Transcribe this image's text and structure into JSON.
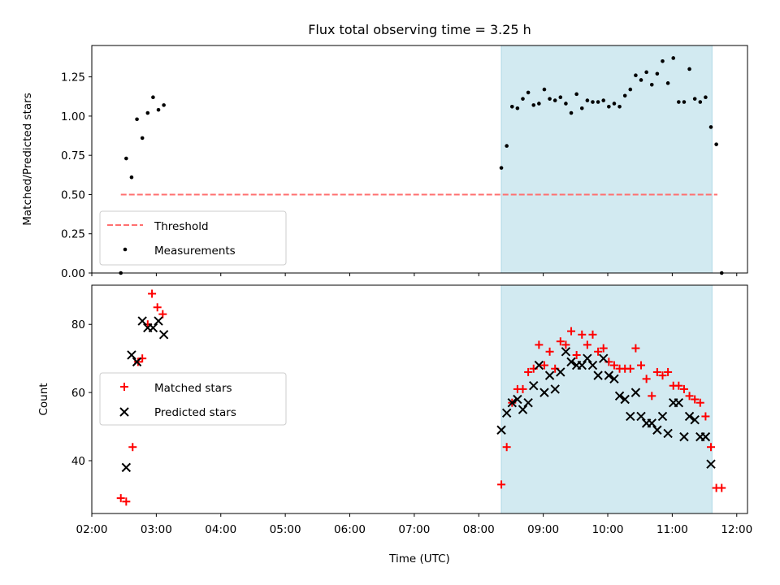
{
  "chart_data": [
    {
      "type": "scatter",
      "title": "Flux total observing time = 3.25 h",
      "ylabel": "Matched/Predicted stars",
      "ylim": [
        0,
        1.45
      ],
      "xlim": [
        "02:00",
        "12:10"
      ],
      "yticks": [
        "0.00",
        "0.25",
        "0.50",
        "0.75",
        "1.00",
        "1.25"
      ],
      "grid": false,
      "legend_placement": "lower-left",
      "highlight_span": {
        "start": "08:21",
        "end": "11:37",
        "color": "#add8e6"
      },
      "threshold": {
        "name": "Threshold",
        "y": 0.5,
        "x_start": "02:27",
        "x_end": "11:42",
        "color": "#ff7070",
        "style": "dashed"
      },
      "series": [
        {
          "name": "Measurements",
          "color": "#000000",
          "marker": "dot",
          "points": [
            [
              "02:27",
              0.0
            ],
            [
              "02:32",
              0.73
            ],
            [
              "02:37",
              0.61
            ],
            [
              "02:42",
              0.98
            ],
            [
              "02:47",
              0.86
            ],
            [
              "02:52",
              1.02
            ],
            [
              "02:57",
              1.12
            ],
            [
              "03:02",
              1.04
            ],
            [
              "03:07",
              1.07
            ],
            [
              "08:21",
              0.67
            ],
            [
              "08:26",
              0.81
            ],
            [
              "08:31",
              1.06
            ],
            [
              "08:36",
              1.05
            ],
            [
              "08:41",
              1.11
            ],
            [
              "08:46",
              1.15
            ],
            [
              "08:51",
              1.07
            ],
            [
              "08:56",
              1.08
            ],
            [
              "09:01",
              1.17
            ],
            [
              "09:06",
              1.11
            ],
            [
              "09:11",
              1.1
            ],
            [
              "09:16",
              1.12
            ],
            [
              "09:21",
              1.08
            ],
            [
              "09:26",
              1.02
            ],
            [
              "09:31",
              1.14
            ],
            [
              "09:36",
              1.05
            ],
            [
              "09:41",
              1.1
            ],
            [
              "09:46",
              1.09
            ],
            [
              "09:51",
              1.09
            ],
            [
              "09:56",
              1.1
            ],
            [
              "10:01",
              1.06
            ],
            [
              "10:06",
              1.08
            ],
            [
              "10:11",
              1.06
            ],
            [
              "10:16",
              1.13
            ],
            [
              "10:21",
              1.17
            ],
            [
              "10:26",
              1.26
            ],
            [
              "10:31",
              1.23
            ],
            [
              "10:36",
              1.28
            ],
            [
              "10:41",
              1.2
            ],
            [
              "10:46",
              1.27
            ],
            [
              "10:51",
              1.35
            ],
            [
              "10:56",
              1.21
            ],
            [
              "11:01",
              1.37
            ],
            [
              "11:06",
              1.09
            ],
            [
              "11:11",
              1.09
            ],
            [
              "11:16",
              1.3
            ],
            [
              "11:21",
              1.11
            ],
            [
              "11:26",
              1.09
            ],
            [
              "11:31",
              1.12
            ],
            [
              "11:36",
              0.93
            ],
            [
              "11:41",
              0.82
            ],
            [
              "11:46",
              0.0
            ]
          ]
        }
      ]
    },
    {
      "type": "scatter",
      "ylabel": "Count",
      "xlabel": "Time (UTC)",
      "ylim": [
        24.5,
        91.5
      ],
      "xlim": [
        "02:00",
        "12:10"
      ],
      "yticks": [
        "40",
        "60",
        "80"
      ],
      "xticks": [
        "02:00",
        "03:00",
        "04:00",
        "05:00",
        "06:00",
        "07:00",
        "08:00",
        "09:00",
        "10:00",
        "11:00",
        "12:00"
      ],
      "grid": false,
      "legend_placement": "center-left",
      "highlight_span": {
        "start": "08:21",
        "end": "11:37",
        "color": "#add8e6"
      },
      "series": [
        {
          "name": "Matched stars",
          "color": "#ff0000",
          "marker": "plus",
          "points": [
            [
              "02:27",
              29
            ],
            [
              "02:32",
              28
            ],
            [
              "02:38",
              44
            ],
            [
              "02:43",
              69
            ],
            [
              "02:47",
              70
            ],
            [
              "02:52",
              80
            ],
            [
              "02:56",
              89
            ],
            [
              "03:01",
              85
            ],
            [
              "03:06",
              83
            ],
            [
              "08:21",
              33
            ],
            [
              "08:26",
              44
            ],
            [
              "08:31",
              57
            ],
            [
              "08:36",
              61
            ],
            [
              "08:41",
              61
            ],
            [
              "08:46",
              66
            ],
            [
              "08:51",
              67
            ],
            [
              "08:56",
              74
            ],
            [
              "09:01",
              68
            ],
            [
              "09:06",
              72
            ],
            [
              "09:11",
              67
            ],
            [
              "09:16",
              75
            ],
            [
              "09:21",
              74
            ],
            [
              "09:26",
              78
            ],
            [
              "09:31",
              71
            ],
            [
              "09:36",
              77
            ],
            [
              "09:41",
              74
            ],
            [
              "09:46",
              77
            ],
            [
              "09:51",
              72
            ],
            [
              "09:56",
              73
            ],
            [
              "10:01",
              69
            ],
            [
              "10:06",
              68
            ],
            [
              "10:11",
              67
            ],
            [
              "10:16",
              67
            ],
            [
              "10:21",
              67
            ],
            [
              "10:26",
              73
            ],
            [
              "10:31",
              68
            ],
            [
              "10:36",
              64
            ],
            [
              "10:41",
              59
            ],
            [
              "10:46",
              66
            ],
            [
              "10:51",
              65
            ],
            [
              "10:56",
              66
            ],
            [
              "11:01",
              62
            ],
            [
              "11:06",
              62
            ],
            [
              "11:11",
              61
            ],
            [
              "11:16",
              59
            ],
            [
              "11:21",
              58
            ],
            [
              "11:26",
              57
            ],
            [
              "11:31",
              53
            ],
            [
              "11:36",
              44
            ],
            [
              "11:41",
              32
            ],
            [
              "11:46",
              32
            ]
          ]
        },
        {
          "name": "Predicted stars",
          "color": "#000000",
          "marker": "x",
          "points": [
            [
              "02:32",
              38
            ],
            [
              "02:37",
              71
            ],
            [
              "02:42",
              69
            ],
            [
              "02:47",
              81
            ],
            [
              "02:52",
              79
            ],
            [
              "02:57",
              79
            ],
            [
              "03:02",
              81
            ],
            [
              "03:07",
              77
            ],
            [
              "08:21",
              49
            ],
            [
              "08:26",
              54
            ],
            [
              "08:31",
              57
            ],
            [
              "08:36",
              58
            ],
            [
              "08:41",
              55
            ],
            [
              "08:46",
              57
            ],
            [
              "08:51",
              62
            ],
            [
              "08:56",
              68
            ],
            [
              "09:01",
              60
            ],
            [
              "09:06",
              65
            ],
            [
              "09:11",
              61
            ],
            [
              "09:16",
              66
            ],
            [
              "09:21",
              72
            ],
            [
              "09:26",
              69
            ],
            [
              "09:31",
              68
            ],
            [
              "09:36",
              68
            ],
            [
              "09:41",
              70
            ],
            [
              "09:46",
              68
            ],
            [
              "09:51",
              65
            ],
            [
              "09:56",
              70
            ],
            [
              "10:01",
              65
            ],
            [
              "10:06",
              64
            ],
            [
              "10:11",
              59
            ],
            [
              "10:16",
              58
            ],
            [
              "10:21",
              53
            ],
            [
              "10:26",
              60
            ],
            [
              "10:31",
              53
            ],
            [
              "10:36",
              51
            ],
            [
              "10:41",
              51
            ],
            [
              "10:46",
              49
            ],
            [
              "10:51",
              53
            ],
            [
              "10:56",
              48
            ],
            [
              "11:01",
              57
            ],
            [
              "11:06",
              57
            ],
            [
              "11:11",
              47
            ],
            [
              "11:16",
              53
            ],
            [
              "11:21",
              52
            ],
            [
              "11:26",
              47
            ],
            [
              "11:31",
              47
            ],
            [
              "11:36",
              39
            ]
          ]
        }
      ]
    }
  ]
}
